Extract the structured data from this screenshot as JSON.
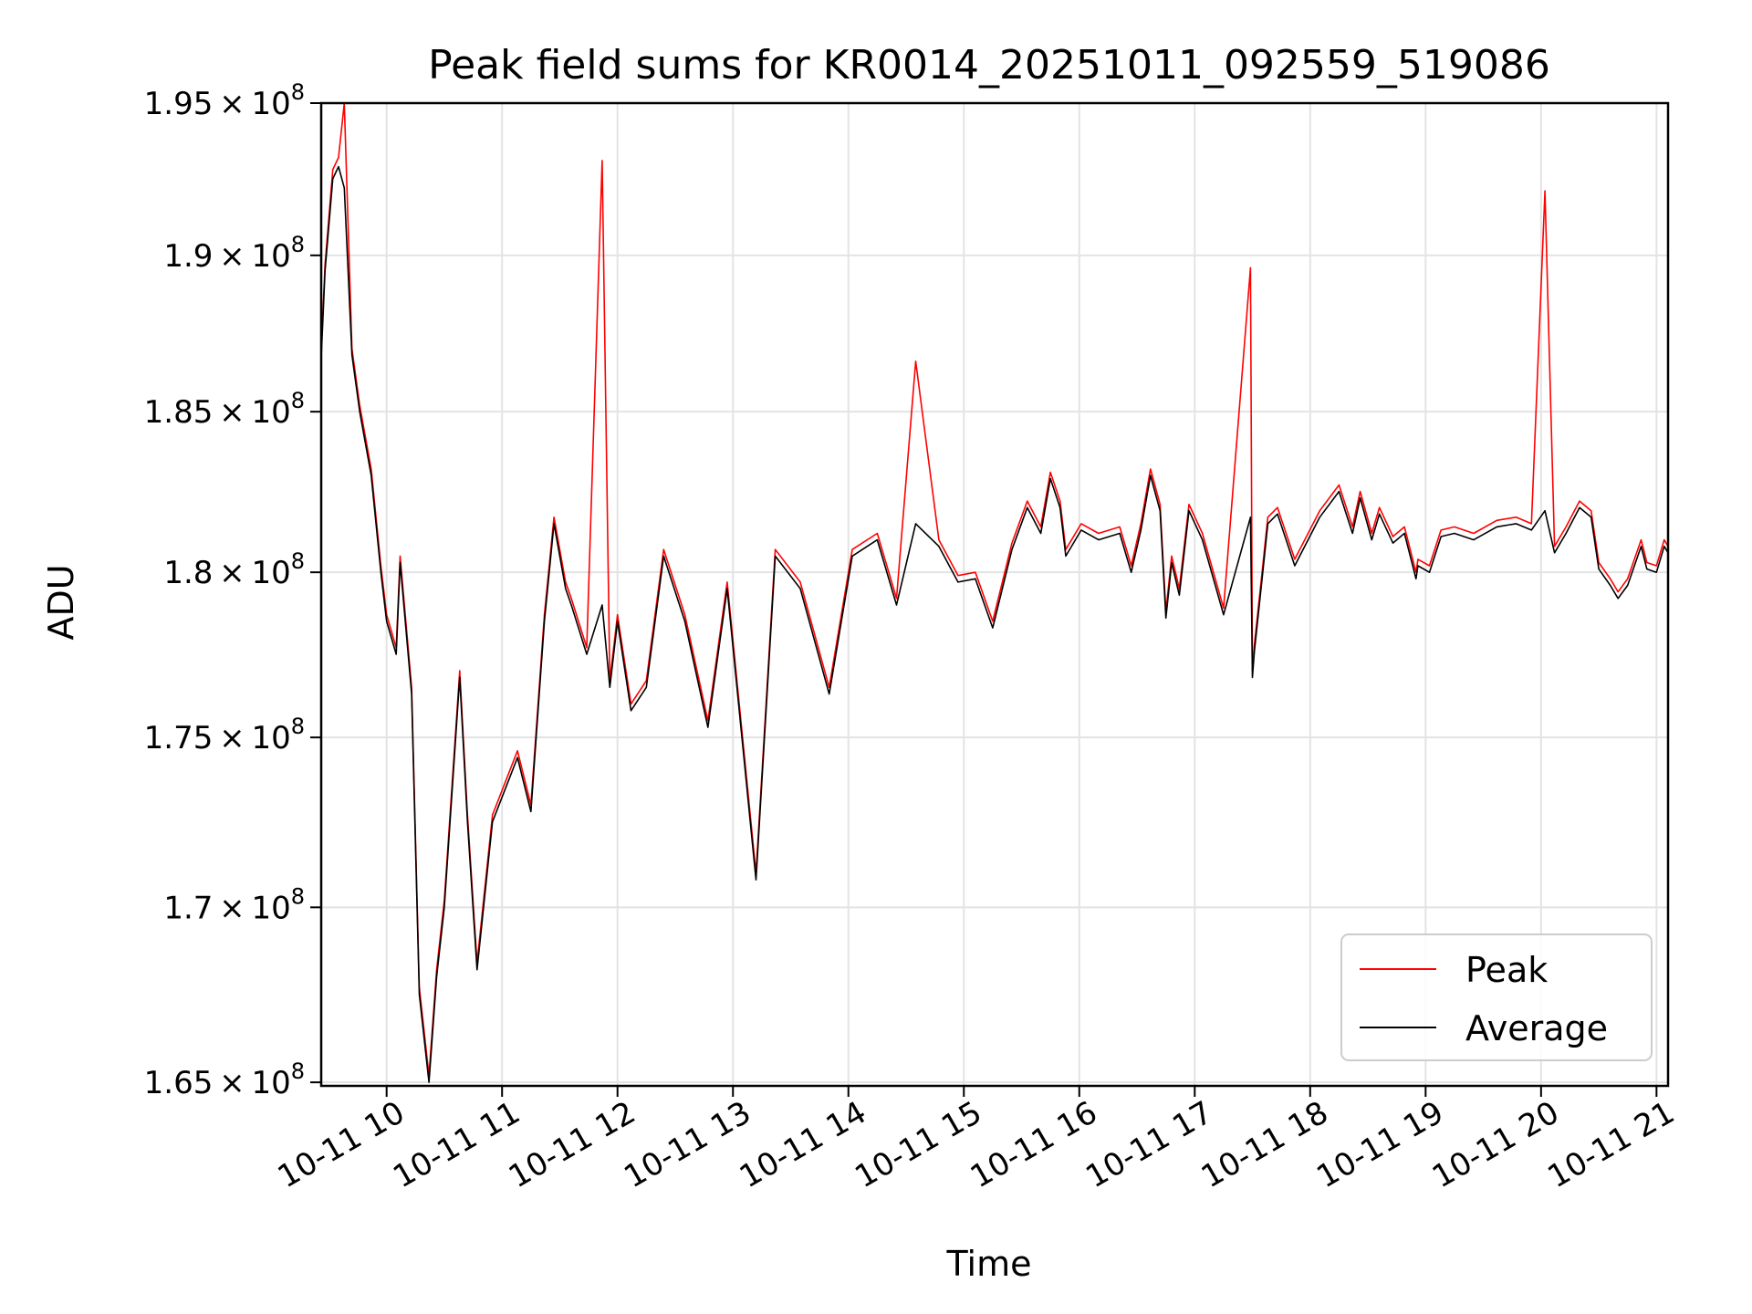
{
  "chart_data": {
    "type": "line",
    "title": "Peak field sums for KR0014_20251011_092559_519086",
    "xlabel": "Time",
    "ylabel": "ADU",
    "xlim": [
      "2025-10-11 09:26",
      "2025-10-11 21:06"
    ],
    "ylim": [
      164900000,
      195000000
    ],
    "yscale": "log",
    "grid": true,
    "legend": {
      "position": "lower right",
      "entries": [
        "Peak",
        "Average"
      ]
    },
    "x_ticks": [
      "10-11 10",
      "10-11 11",
      "10-11 12",
      "10-11 13",
      "10-11 14",
      "10-11 15",
      "10-11 16",
      "10-11 17",
      "10-11 18",
      "10-11 19",
      "10-11 20",
      "10-11 21"
    ],
    "y_ticks": [
      {
        "value": 165000000,
        "mantissa": "1.65",
        "exp": "8"
      },
      {
        "value": 170000000,
        "mantissa": "1.7",
        "exp": "8"
      },
      {
        "value": 175000000,
        "mantissa": "1.75",
        "exp": "8"
      },
      {
        "value": 180000000,
        "mantissa": "1.8",
        "exp": "8"
      },
      {
        "value": 185000000,
        "mantissa": "1.85",
        "exp": "8"
      },
      {
        "value": 190000000,
        "mantissa": "1.9",
        "exp": "8"
      },
      {
        "value": 195000000,
        "mantissa": "1.95",
        "exp": "8"
      }
    ],
    "x": [
      "2025-10-11 09:26",
      "2025-10-11 09:28",
      "2025-10-11 09:32",
      "2025-10-11 09:35",
      "2025-10-11 09:38",
      "2025-10-11 09:42",
      "2025-10-11 09:46",
      "2025-10-11 09:52",
      "2025-10-11 09:57",
      "2025-10-11 10:00",
      "2025-10-11 10:05",
      "2025-10-11 10:07",
      "2025-10-11 10:13",
      "2025-10-11 10:17",
      "2025-10-11 10:22",
      "2025-10-11 10:26",
      "2025-10-11 10:30",
      "2025-10-11 10:38",
      "2025-10-11 10:42",
      "2025-10-11 10:47",
      "2025-10-11 10:55",
      "2025-10-11 11:08",
      "2025-10-11 11:15",
      "2025-10-11 11:22",
      "2025-10-11 11:27",
      "2025-10-11 11:33",
      "2025-10-11 11:36",
      "2025-10-11 11:44",
      "2025-10-11 11:52",
      "2025-10-11 11:56",
      "2025-10-11 12:00",
      "2025-10-11 12:07",
      "2025-10-11 12:15",
      "2025-10-11 12:24",
      "2025-10-11 12:35",
      "2025-10-11 12:47",
      "2025-10-11 12:57",
      "2025-10-11 13:12",
      "2025-10-11 13:22",
      "2025-10-11 13:35",
      "2025-10-11 13:50",
      "2025-10-11 14:02",
      "2025-10-11 14:15",
      "2025-10-11 14:25",
      "2025-10-11 14:35",
      "2025-10-11 14:47",
      "2025-10-11 14:57",
      "2025-10-11 15:06",
      "2025-10-11 15:15",
      "2025-10-11 15:25",
      "2025-10-11 15:33",
      "2025-10-11 15:40",
      "2025-10-11 15:45",
      "2025-10-11 15:50",
      "2025-10-11 15:53",
      "2025-10-11 16:01",
      "2025-10-11 16:10",
      "2025-10-11 16:21",
      "2025-10-11 16:27",
      "2025-10-11 16:32",
      "2025-10-11 16:37",
      "2025-10-11 16:42",
      "2025-10-11 16:45",
      "2025-10-11 16:48",
      "2025-10-11 16:52",
      "2025-10-11 16:57",
      "2025-10-11 17:04",
      "2025-10-11 17:15",
      "2025-10-11 17:29",
      "2025-10-11 17:30",
      "2025-10-11 17:31",
      "2025-10-11 17:35",
      "2025-10-11 17:38",
      "2025-10-11 17:43",
      "2025-10-11 17:52",
      "2025-10-11 18:05",
      "2025-10-11 18:15",
      "2025-10-11 18:22",
      "2025-10-11 18:26",
      "2025-10-11 18:32",
      "2025-10-11 18:36",
      "2025-10-11 18:43",
      "2025-10-11 18:49",
      "2025-10-11 18:55",
      "2025-10-11 18:56",
      "2025-10-11 19:02",
      "2025-10-11 19:08",
      "2025-10-11 19:15",
      "2025-10-11 19:25",
      "2025-10-11 19:37",
      "2025-10-11 19:47",
      "2025-10-11 19:55",
      "2025-10-11 20:02",
      "2025-10-11 20:07",
      "2025-10-11 20:13",
      "2025-10-11 20:20",
      "2025-10-11 20:26",
      "2025-10-11 20:30",
      "2025-10-11 20:36",
      "2025-10-11 20:40",
      "2025-10-11 20:45",
      "2025-10-11 20:52",
      "2025-10-11 20:55",
      "2025-10-11 21:00",
      "2025-10-11 21:04",
      "2025-10-11 21:06"
    ],
    "series": [
      {
        "name": "Average",
        "color": "#000000",
        "values": [
          186700000,
          189500000,
          192500000,
          192900000,
          192200000,
          186800000,
          185000000,
          183000000,
          180000000,
          178500000,
          177500000,
          180300000,
          176300000,
          167500000,
          165000000,
          168000000,
          170000000,
          176800000,
          172500000,
          168200000,
          172500000,
          174400000,
          172800000,
          178500000,
          181500000,
          179500000,
          179000000,
          177500000,
          179000000,
          176500000,
          178500000,
          175800000,
          176500000,
          180500000,
          178500000,
          175300000,
          179500000,
          170800000,
          180500000,
          179500000,
          176300000,
          180500000,
          181000000,
          179000000,
          181500000,
          180800000,
          179700000,
          179800000,
          178300000,
          180700000,
          182000000,
          181200000,
          182900000,
          182000000,
          180500000,
          181300000,
          181000000,
          181200000,
          180000000,
          181300000,
          183000000,
          181900000,
          178600000,
          180300000,
          179300000,
          181900000,
          181000000,
          178700000,
          181700000,
          176800000,
          177600000,
          179800000,
          181500000,
          181800000,
          180200000,
          181700000,
          182500000,
          181200000,
          182300000,
          181000000,
          181800000,
          180900000,
          181200000,
          179800000,
          180200000,
          180000000,
          181100000,
          181200000,
          181000000,
          181400000,
          181500000,
          181300000,
          181900000,
          180600000,
          181200000,
          182000000,
          181700000,
          180100000,
          179600000,
          179200000,
          179600000,
          180800000,
          180100000,
          180000000,
          180800000,
          180600000
        ]
      },
      {
        "name": "Peak",
        "color": "#ff0000",
        "values": [
          186900000,
          189700000,
          192800000,
          193200000,
          195000000,
          187000000,
          185200000,
          183200000,
          180200000,
          178700000,
          177700000,
          180500000,
          176500000,
          167700000,
          165200000,
          168200000,
          170200000,
          177000000,
          172700000,
          168400000,
          172700000,
          174600000,
          173000000,
          178700000,
          181700000,
          179700000,
          179200000,
          177700000,
          193100000,
          176700000,
          178700000,
          176000000,
          176700000,
          180700000,
          178700000,
          175500000,
          179700000,
          171000000,
          180700000,
          179700000,
          176500000,
          180700000,
          181200000,
          179200000,
          186600000,
          181000000,
          179900000,
          180000000,
          178500000,
          180900000,
          182200000,
          181400000,
          183100000,
          182200000,
          180700000,
          181500000,
          181200000,
          181400000,
          180200000,
          181500000,
          183200000,
          182100000,
          178800000,
          180500000,
          179500000,
          182100000,
          181200000,
          178900000,
          189600000,
          177000000,
          177800000,
          180000000,
          181700000,
          182000000,
          180400000,
          181900000,
          182700000,
          181400000,
          182500000,
          181200000,
          182000000,
          181100000,
          181400000,
          180000000,
          180400000,
          180200000,
          181300000,
          181400000,
          181200000,
          181600000,
          181700000,
          181500000,
          192100000,
          180800000,
          181400000,
          182200000,
          181900000,
          180300000,
          179800000,
          179400000,
          179800000,
          181000000,
          180300000,
          180200000,
          181000000,
          180800000
        ]
      }
    ]
  }
}
